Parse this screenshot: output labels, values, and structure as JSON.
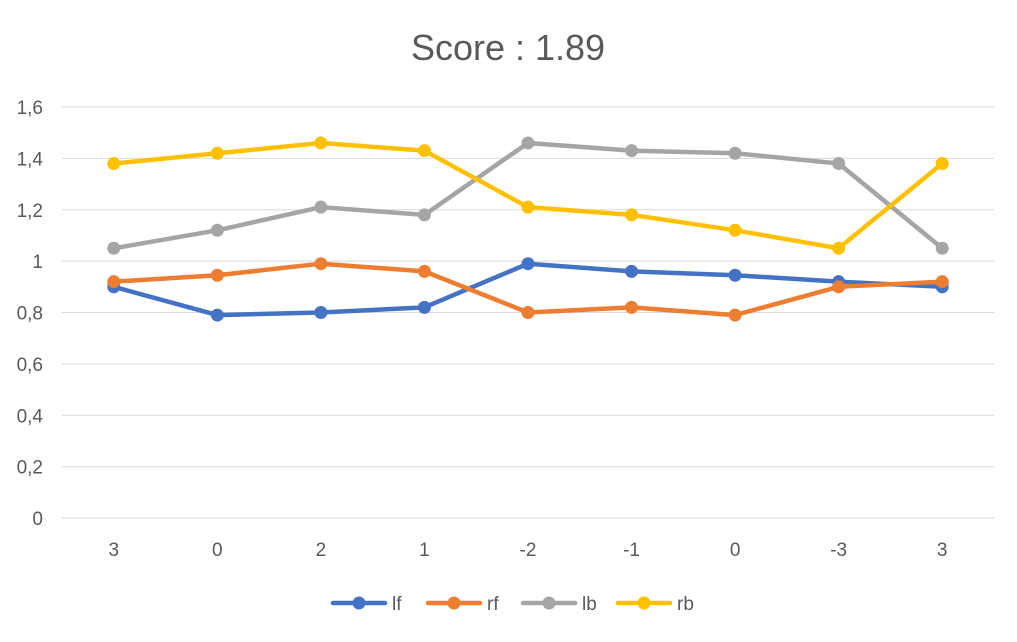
{
  "chart_data": {
    "type": "line",
    "title": "Score : 1.89",
    "xlabel": "",
    "ylabel": "",
    "categories": [
      "3",
      "0",
      "2",
      "1",
      "-2",
      "-1",
      "0",
      "-3",
      "3"
    ],
    "ylim": [
      0,
      1.6
    ],
    "yticks": [
      "0",
      "0,2",
      "0,4",
      "0,6",
      "0,8",
      "1",
      "1,2",
      "1,4",
      "1,6"
    ],
    "grid": true,
    "legend_position": "bottom",
    "series": [
      {
        "name": "lf",
        "color": "#4472c4",
        "values": [
          0.9,
          0.79,
          0.8,
          0.82,
          0.99,
          0.96,
          0.945,
          0.92,
          0.9
        ]
      },
      {
        "name": "rf",
        "color": "#ed7d31",
        "values": [
          0.92,
          0.945,
          0.99,
          0.96,
          0.8,
          0.82,
          0.79,
          0.9,
          0.92
        ]
      },
      {
        "name": "lb",
        "color": "#a5a5a5",
        "values": [
          1.05,
          1.12,
          1.21,
          1.18,
          1.46,
          1.43,
          1.42,
          1.38,
          1.05
        ]
      },
      {
        "name": "rb",
        "color": "#ffc000",
        "values": [
          1.38,
          1.42,
          1.46,
          1.43,
          1.21,
          1.18,
          1.12,
          1.05,
          1.38
        ]
      }
    ]
  }
}
